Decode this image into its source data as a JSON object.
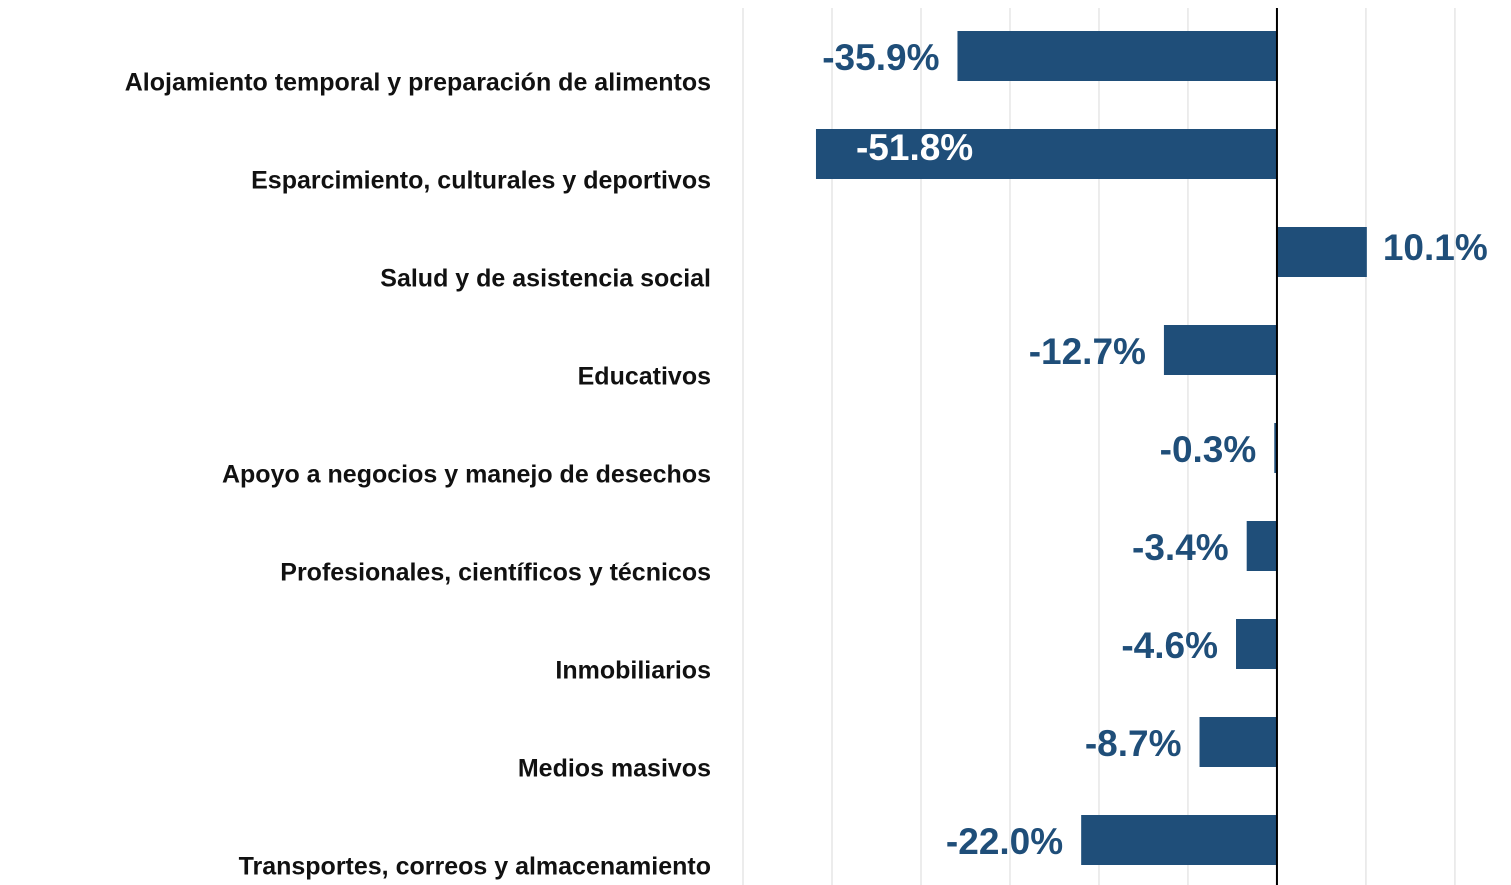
{
  "chart_data": {
    "type": "barh",
    "categories": [
      "Alojamiento temporal y preparación de alimentos",
      "Esparcimiento, culturales y deportivos",
      "Salud y de asistencia social",
      "Educativos",
      "Apoyo a negocios y manejo de desechos",
      "Profesionales, científicos y técnicos",
      "Inmobiliarios",
      "Medios masivos",
      "Transportes, correos y almacenamiento"
    ],
    "values": [
      -35.9,
      -51.8,
      10.1,
      -12.7,
      -0.3,
      -3.4,
      -4.6,
      -8.7,
      -22.0
    ],
    "value_labels": [
      "-35.9%",
      "-51.8%",
      "10.1%",
      "-12.7%",
      "-0.3%",
      "-3.4%",
      "-4.6%",
      "-8.7%",
      "-22.0%"
    ],
    "color": "#1f4e79",
    "xlim": [
      -60,
      26.3
    ],
    "xticks": [
      -60,
      -50,
      -40,
      -30,
      -20,
      -10,
      0,
      10,
      20
    ],
    "grid": true
  }
}
